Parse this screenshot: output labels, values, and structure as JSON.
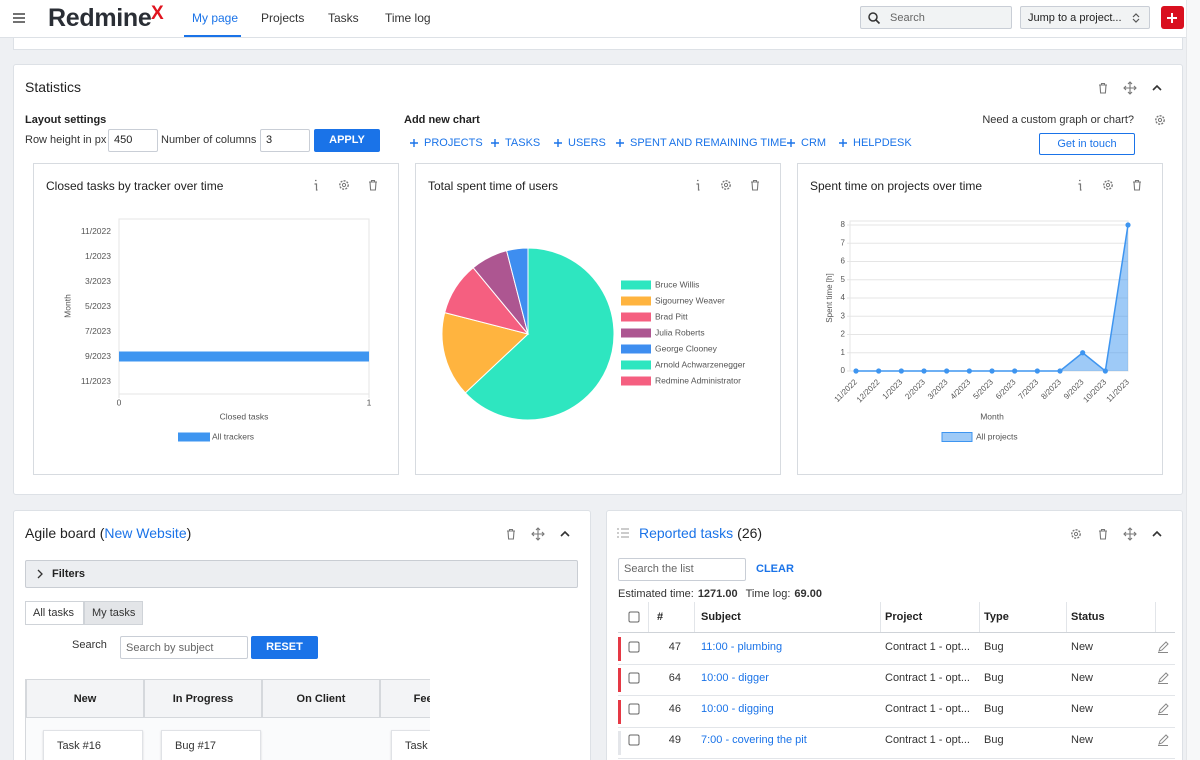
{
  "header": {
    "logo": "Redmine",
    "logo_mark": "X",
    "nav": [
      "My page",
      "Projects",
      "Tasks",
      "Time log"
    ],
    "search_placeholder": "Search",
    "project_jump": "Jump to a project..."
  },
  "statistics": {
    "title": "Statistics",
    "layout_settings": "Layout settings",
    "row_height_label": "Row height in px",
    "row_height": 450,
    "columns_label": "Number of columns",
    "columns": 3,
    "apply": "APPLY",
    "add_chart": "Add new chart",
    "chart_links": [
      "PROJECTS",
      "TASKS",
      "USERS",
      "SPENT AND REMAINING TIME",
      "CRM",
      "HELPDESK"
    ],
    "custom_prompt": "Need a custom graph or chart?",
    "get_in_touch": "Get in touch"
  },
  "chart_data": [
    {
      "type": "bar",
      "title": "Closed tasks by tracker over time",
      "categories": [
        "11/2022",
        null,
        "1/2023",
        null,
        "3/2023",
        null,
        "5/2023",
        null,
        "7/2023",
        null,
        "9/2023",
        null,
        "11/2023"
      ],
      "series": [
        {
          "name": "All trackers",
          "color": "#3e95f0",
          "values": [
            0,
            0,
            0,
            0,
            0,
            0,
            0,
            0,
            0,
            0,
            1,
            0,
            0
          ]
        }
      ],
      "xlim": [
        0,
        1
      ],
      "xticks": [
        0,
        1
      ],
      "xlabel": "Closed tasks",
      "ylabel": "Month",
      "grid": true
    },
    {
      "type": "pie",
      "title": "Total spent time of users",
      "categories": [
        "Bruce Willis",
        "Sigourney Weaver",
        "Brad Pitt",
        "Julia Roberts",
        "George Clooney",
        "Arnold Achwarzenegger",
        "Redmine Administrator"
      ],
      "values": [
        63,
        16,
        10,
        7,
        4,
        0,
        0
      ],
      "colors": [
        "#2ee6c0",
        "#ffb43f",
        "#f55f80",
        "#ad5691",
        "#3e8ef0",
        "#2ee6c0",
        "#f55f80"
      ]
    },
    {
      "type": "area",
      "title": "Spent time on projects over time",
      "categories": [
        "11/2022",
        "12/2022",
        "1/2023",
        "2/2023",
        "3/2023",
        "4/2023",
        "5/2023",
        "6/2023",
        "7/2023",
        "8/2023",
        "9/2023",
        "10/2023",
        "11/2023"
      ],
      "series": [
        {
          "name": "All projects",
          "color": "#3e95f0",
          "values": [
            0,
            0,
            0,
            0,
            0,
            0,
            0,
            0,
            0,
            0,
            1,
            0,
            8
          ]
        }
      ],
      "ylim": [
        0,
        8
      ],
      "yticks": [
        0,
        1,
        2,
        3,
        4,
        5,
        6,
        7,
        8
      ],
      "xlabel": "Month",
      "ylabel": "Spent time [h]",
      "grid": true
    }
  ],
  "agile_board": {
    "title": "Agile board (",
    "project": "New Website",
    "title_end": ")",
    "filters": "Filters",
    "tabs": [
      "All tasks",
      "My tasks"
    ],
    "search_label": "Search",
    "search_placeholder": "Search by subject",
    "reset": "RESET",
    "columns": [
      "New",
      "In Progress",
      "On Client",
      "Feedback"
    ],
    "cards": [
      "Task #16",
      "Bug #17",
      "Task"
    ]
  },
  "reported_tasks": {
    "title": "Reported tasks",
    "count": "(26)",
    "search_placeholder": "Search the list",
    "clear": "CLEAR",
    "estimated_label": "Estimated time:",
    "estimated": "1271.00",
    "timelog_label": "Time log:",
    "timelog": "69.00",
    "columns": [
      "#",
      "Subject",
      "Project",
      "Type",
      "Status"
    ],
    "rows": [
      {
        "id": 47,
        "subject": "11:00 - plumbing",
        "project": "Contract 1 - opt...",
        "type": "Bug",
        "status": "New",
        "flagged": true
      },
      {
        "id": 64,
        "subject": "10:00 - digger",
        "project": "Contract 1 - opt...",
        "type": "Bug",
        "status": "New",
        "flagged": true
      },
      {
        "id": 46,
        "subject": "10:00 - digging",
        "project": "Contract 1 - opt...",
        "type": "Bug",
        "status": "New",
        "flagged": true
      },
      {
        "id": 49,
        "subject": "7:00 - covering the pit",
        "project": "Contract 1 - opt...",
        "type": "Bug",
        "status": "New",
        "flagged": false
      }
    ]
  }
}
